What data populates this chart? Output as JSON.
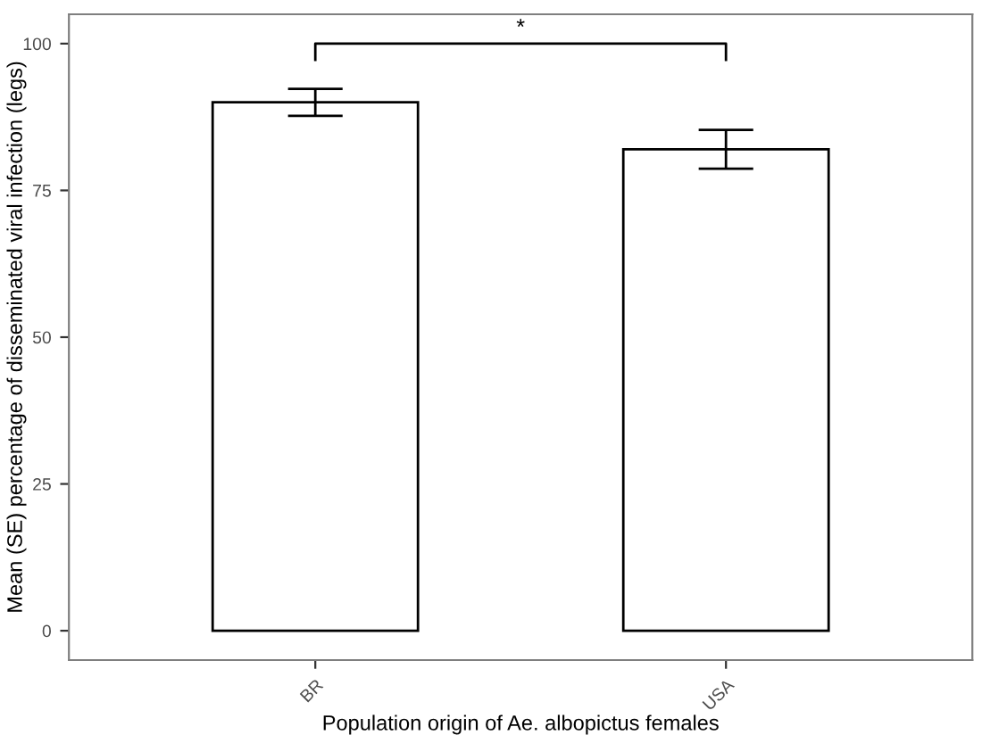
{
  "chart_data": {
    "type": "bar",
    "xlabel": "Population origin of Ae. albopictus females",
    "ylabel": "Mean (SE) percentage of disseminated viral infection (legs)",
    "categories": [
      "BR",
      "USA"
    ],
    "values": [
      90,
      82
    ],
    "errors": [
      2.3,
      3.3
    ],
    "color": "#ffffff",
    "ylim": [
      -5,
      105
    ],
    "yticks": [
      0,
      25,
      50,
      75,
      100
    ],
    "grid": false,
    "annotations": [
      "*"
    ]
  }
}
